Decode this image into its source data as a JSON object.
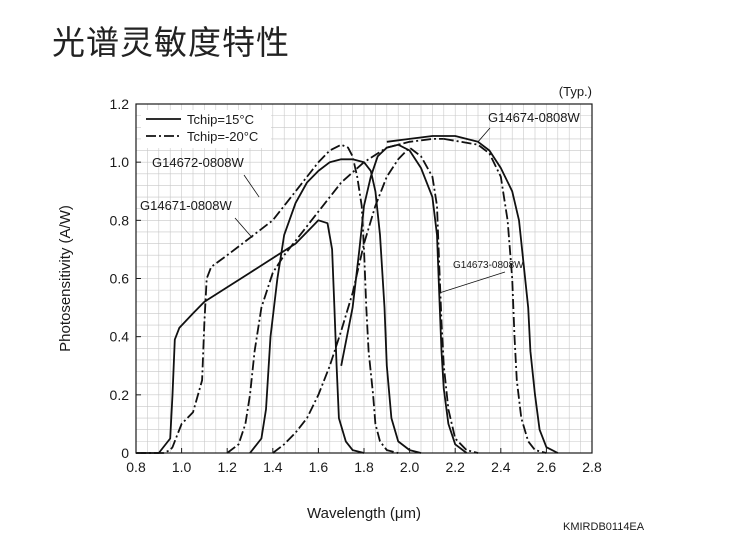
{
  "page": {
    "title": "光谱灵敏度特性",
    "doc_code": "KMIRDB0114EA"
  },
  "chart_data": {
    "type": "line",
    "title": "",
    "note": "(Typ.)",
    "xlabel": "Wavelength (μm)",
    "ylabel": "Photosensitivity (A/W)",
    "xlim": [
      0.8,
      2.8
    ],
    "ylim": [
      0,
      1.2
    ],
    "x_ticks": [
      0.8,
      1.0,
      1.2,
      1.4,
      1.6,
      1.8,
      2.0,
      2.2,
      2.4,
      2.6,
      2.8
    ],
    "x_tick_labels": [
      "0.8",
      "1.0",
      "1.2",
      "1.4",
      "1.6",
      "1.8",
      "2.0",
      "2.2",
      "2.4",
      "2.6",
      "2.8"
    ],
    "y_ticks": [
      0,
      0.2,
      0.4,
      0.6,
      0.8,
      1.0,
      1.2
    ],
    "y_tick_labels": [
      "0",
      "0.2",
      "0.4",
      "0.6",
      "0.8",
      "1.0",
      "1.2"
    ],
    "grid": true,
    "legend_position": "top-left",
    "legend": [
      {
        "label": "Tchip=15°C",
        "style": "solid"
      },
      {
        "label": "Tchip=-20°C",
        "style": "dashdot"
      }
    ],
    "series": [
      {
        "name": "G14671-0808W",
        "temperature": "Tchip=15°C",
        "style": "solid",
        "points": [
          [
            0.8,
            0
          ],
          [
            0.9,
            0
          ],
          [
            0.95,
            0.05
          ],
          [
            0.96,
            0.2
          ],
          [
            0.97,
            0.39
          ],
          [
            0.99,
            0.43
          ],
          [
            1.05,
            0.48
          ],
          [
            1.1,
            0.52
          ],
          [
            1.2,
            0.57
          ],
          [
            1.3,
            0.62
          ],
          [
            1.4,
            0.67
          ],
          [
            1.5,
            0.72
          ],
          [
            1.55,
            0.76
          ],
          [
            1.6,
            0.8
          ],
          [
            1.64,
            0.79
          ],
          [
            1.66,
            0.7
          ],
          [
            1.67,
            0.5
          ],
          [
            1.68,
            0.3
          ],
          [
            1.69,
            0.12
          ],
          [
            1.72,
            0.04
          ],
          [
            1.75,
            0.01
          ],
          [
            1.8,
            0
          ]
        ]
      },
      {
        "name": "G14671-0808W",
        "temperature": "Tchip=-20°C",
        "style": "dashdot",
        "points": [
          [
            0.8,
            0
          ],
          [
            0.92,
            0
          ],
          [
            0.95,
            0.01
          ],
          [
            0.96,
            0.02
          ],
          [
            0.98,
            0.06
          ],
          [
            1.0,
            0.1
          ],
          [
            1.05,
            0.14
          ],
          [
            1.09,
            0.25
          ],
          [
            1.1,
            0.45
          ],
          [
            1.11,
            0.6
          ],
          [
            1.13,
            0.64
          ],
          [
            1.2,
            0.68
          ],
          [
            1.3,
            0.74
          ],
          [
            1.4,
            0.8
          ],
          [
            1.5,
            0.9
          ],
          [
            1.6,
            1.0
          ],
          [
            1.65,
            1.04
          ],
          [
            1.7,
            1.06
          ],
          [
            1.73,
            1.05
          ],
          [
            1.75,
            1.02
          ],
          [
            1.77,
            0.95
          ],
          [
            1.79,
            0.85
          ],
          [
            1.8,
            0.7
          ],
          [
            1.81,
            0.5
          ],
          [
            1.82,
            0.35
          ],
          [
            1.84,
            0.2
          ],
          [
            1.85,
            0.1
          ],
          [
            1.87,
            0.04
          ],
          [
            1.9,
            0.01
          ],
          [
            1.95,
            0
          ]
        ]
      },
      {
        "name": "G14672-0808W",
        "temperature": "Tchip=15°C",
        "style": "solid",
        "points": [
          [
            1.3,
            0
          ],
          [
            1.35,
            0.05
          ],
          [
            1.37,
            0.15
          ],
          [
            1.39,
            0.4
          ],
          [
            1.42,
            0.6
          ],
          [
            1.45,
            0.75
          ],
          [
            1.5,
            0.86
          ],
          [
            1.55,
            0.93
          ],
          [
            1.6,
            0.97
          ],
          [
            1.65,
            1.0
          ],
          [
            1.7,
            1.01
          ],
          [
            1.75,
            1.01
          ],
          [
            1.8,
            1.0
          ],
          [
            1.83,
            0.97
          ],
          [
            1.85,
            0.9
          ],
          [
            1.87,
            0.75
          ],
          [
            1.89,
            0.5
          ],
          [
            1.9,
            0.3
          ],
          [
            1.92,
            0.12
          ],
          [
            1.95,
            0.04
          ],
          [
            2.0,
            0.01
          ],
          [
            2.05,
            0
          ]
        ]
      },
      {
        "name": "G14672-0808W",
        "temperature": "Tchip=-20°C",
        "style": "dashdot",
        "points": [
          [
            1.2,
            0
          ],
          [
            1.25,
            0.03
          ],
          [
            1.28,
            0.1
          ],
          [
            1.3,
            0.2
          ],
          [
            1.32,
            0.35
          ],
          [
            1.35,
            0.5
          ],
          [
            1.4,
            0.62
          ],
          [
            1.45,
            0.68
          ],
          [
            1.5,
            0.73
          ],
          [
            1.6,
            0.83
          ],
          [
            1.7,
            0.93
          ],
          [
            1.8,
            1.0
          ],
          [
            1.9,
            1.05
          ],
          [
            2.0,
            1.07
          ],
          [
            2.1,
            1.08
          ],
          [
            2.15,
            1.08
          ]
        ]
      },
      {
        "name": "G14673-0808W",
        "temperature": "Tchip=15°C",
        "style": "solid",
        "points": [
          [
            1.7,
            0.3
          ],
          [
            1.75,
            0.5
          ],
          [
            1.78,
            0.7
          ],
          [
            1.8,
            0.85
          ],
          [
            1.83,
            0.95
          ],
          [
            1.86,
            1.02
          ],
          [
            1.9,
            1.05
          ],
          [
            1.95,
            1.06
          ],
          [
            2.0,
            1.04
          ],
          [
            2.05,
            0.98
          ],
          [
            2.1,
            0.88
          ],
          [
            2.12,
            0.75
          ],
          [
            2.13,
            0.55
          ],
          [
            2.14,
            0.35
          ],
          [
            2.15,
            0.22
          ],
          [
            2.17,
            0.1
          ],
          [
            2.2,
            0.03
          ],
          [
            2.25,
            0
          ]
        ]
      },
      {
        "name": "G14673-0808W",
        "temperature": "Tchip=-20°C",
        "style": "dashdot",
        "points": [
          [
            1.4,
            0
          ],
          [
            1.45,
            0.03
          ],
          [
            1.5,
            0.07
          ],
          [
            1.55,
            0.12
          ],
          [
            1.6,
            0.2
          ],
          [
            1.65,
            0.3
          ],
          [
            1.7,
            0.42
          ],
          [
            1.75,
            0.55
          ],
          [
            1.8,
            0.72
          ],
          [
            1.85,
            0.85
          ],
          [
            1.9,
            0.95
          ],
          [
            1.95,
            1.01
          ],
          [
            2.0,
            1.05
          ],
          [
            2.05,
            1.02
          ],
          [
            2.1,
            0.95
          ],
          [
            2.12,
            0.85
          ],
          [
            2.13,
            0.65
          ],
          [
            2.14,
            0.45
          ],
          [
            2.15,
            0.3
          ],
          [
            2.17,
            0.15
          ],
          [
            2.2,
            0.05
          ],
          [
            2.25,
            0.01
          ],
          [
            2.3,
            0
          ]
        ]
      },
      {
        "name": "G14674-0808W",
        "temperature": "Tchip=15°C",
        "style": "solid",
        "points": [
          [
            1.9,
            1.07
          ],
          [
            2.0,
            1.08
          ],
          [
            2.1,
            1.09
          ],
          [
            2.2,
            1.09
          ],
          [
            2.3,
            1.07
          ],
          [
            2.35,
            1.04
          ],
          [
            2.4,
            0.98
          ],
          [
            2.45,
            0.9
          ],
          [
            2.48,
            0.8
          ],
          [
            2.5,
            0.65
          ],
          [
            2.52,
            0.5
          ],
          [
            2.53,
            0.35
          ],
          [
            2.55,
            0.2
          ],
          [
            2.57,
            0.08
          ],
          [
            2.6,
            0.02
          ],
          [
            2.65,
            0
          ]
        ]
      },
      {
        "name": "G14674-0808W",
        "temperature": "Tchip=-20°C",
        "style": "dashdot",
        "points": [
          [
            2.15,
            1.08
          ],
          [
            2.3,
            1.06
          ],
          [
            2.35,
            1.03
          ],
          [
            2.4,
            0.95
          ],
          [
            2.43,
            0.8
          ],
          [
            2.45,
            0.6
          ],
          [
            2.46,
            0.4
          ],
          [
            2.47,
            0.25
          ],
          [
            2.49,
            0.12
          ],
          [
            2.52,
            0.04
          ],
          [
            2.55,
            0.01
          ],
          [
            2.6,
            0
          ]
        ]
      }
    ],
    "annotations": [
      {
        "text": "G14672-0808W",
        "size": "normal",
        "anchor_x": 1.34,
        "anchor_y": 0.88
      },
      {
        "text": "G14671-0808W",
        "size": "normal",
        "anchor_x": 1.31,
        "anchor_y": 0.74
      },
      {
        "text": "G14674-0808W",
        "size": "normal",
        "anchor_x": 2.3,
        "anchor_y": 1.07
      },
      {
        "text": "G14673-0808W",
        "size": "small",
        "anchor_x": 2.13,
        "anchor_y": 0.55
      }
    ]
  }
}
